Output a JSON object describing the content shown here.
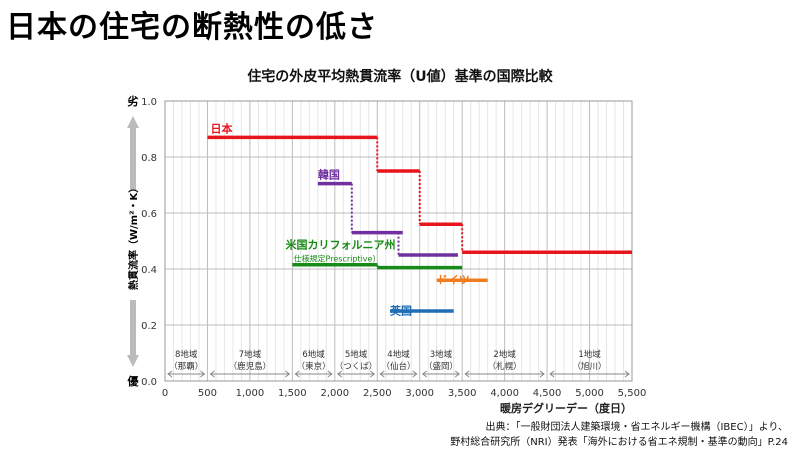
{
  "page_title": "日本の住宅の断熱性の低さ",
  "source_line1": "出典：「一般財団法人建築環境・省エネルギー機構（IBEC）」より、",
  "source_line2": "野村総合研究所（NRI）発表「海外における省エネ規制・基準の動向」P.24",
  "chart_data": {
    "type": "line",
    "title": "住宅の外皮平均熱貫流率（U値）基準の国際比較",
    "xlabel": "暖房デグリーデー（度日）",
    "ylabel": "熱貫流率（W/m²・K）",
    "y_top_label": "劣",
    "y_bottom_label": "優",
    "xlim": [
      0,
      5500
    ],
    "ylim": [
      0,
      1.0
    ],
    "xticks": [
      0,
      500,
      1000,
      1500,
      2000,
      2500,
      3000,
      3500,
      4000,
      4500,
      5000,
      5500
    ],
    "xtick_labels": [
      "0",
      "500",
      "1,000",
      "1,500",
      "2,000",
      "2,500",
      "3,000",
      "3,500",
      "4,000",
      "4,500",
      "5,000",
      "5,500"
    ],
    "yticks": [
      0,
      0.2,
      0.4,
      0.6,
      0.8,
      1.0
    ],
    "ytick_labels": [
      "0.0",
      "0.2",
      "0.4",
      "0.6",
      "0.8",
      "1.0"
    ],
    "grid": true,
    "regions": [
      {
        "name": "8地域",
        "city": "（那覇）",
        "from": 0,
        "to": 500
      },
      {
        "name": "7地域",
        "city": "（鹿児島）",
        "from": 500,
        "to": 1500
      },
      {
        "name": "6地域",
        "city": "（東京）",
        "from": 1500,
        "to": 2000
      },
      {
        "name": "5地域",
        "city": "（つくば）",
        "from": 2000,
        "to": 2500
      },
      {
        "name": "4地域",
        "city": "（仙台）",
        "from": 2500,
        "to": 3000
      },
      {
        "name": "3地域",
        "city": "（盛岡）",
        "from": 3000,
        "to": 3500
      },
      {
        "name": "2地域",
        "city": "（札幌）",
        "from": 3500,
        "to": 4500
      },
      {
        "name": "1地域",
        "city": "（旭川）",
        "from": 4500,
        "to": 5500
      }
    ],
    "series": [
      {
        "name": "日本",
        "color": "#e8141c",
        "label_at": [
          500,
          0.87
        ],
        "segments": [
          [
            500,
            2500,
            0.87
          ],
          [
            2500,
            3000,
            0.75
          ],
          [
            3000,
            3500,
            0.56
          ],
          [
            3500,
            5500,
            0.46
          ]
        ]
      },
      {
        "name": "韓国",
        "color": "#7030a0",
        "label_at": [
          1800,
          0.705
        ],
        "segments": [
          [
            1800,
            2200,
            0.705
          ],
          [
            2200,
            2800,
            0.53
          ],
          [
            2750,
            3450,
            0.45
          ]
        ]
      },
      {
        "name": "米国カリフォルニア州",
        "sublabel": "仕様規定Prescriptive）",
        "color": "#178a17",
        "label_at": [
          1420,
          0.455
        ],
        "segments": [
          [
            1500,
            2500,
            0.415
          ],
          [
            2500,
            3500,
            0.405
          ]
        ]
      },
      {
        "name": "ドイツ",
        "color": "#f07c1c",
        "label_at": [
          3200,
          0.33
        ],
        "segments": [
          [
            3200,
            3800,
            0.36
          ]
        ]
      },
      {
        "name": "英国",
        "color": "#1f6fb5",
        "label_at": [
          2650,
          0.22
        ],
        "segments": [
          [
            2650,
            3400,
            0.25
          ]
        ]
      }
    ]
  }
}
